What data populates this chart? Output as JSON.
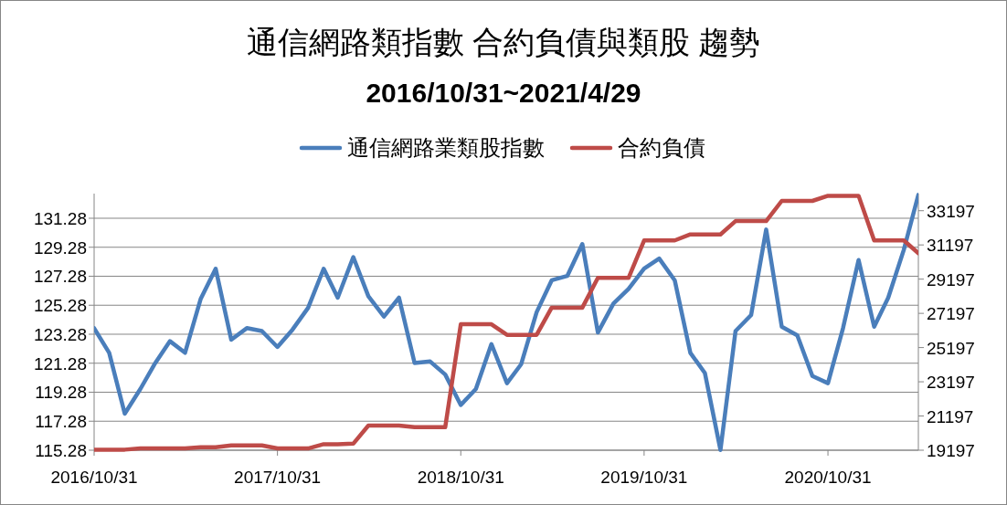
{
  "chart_data": {
    "type": "line",
    "title": "通信網路類指數 合約負債與類股 趨勢",
    "subtitle": "2016/10/31~2021/4/29",
    "x": [
      "2016-10-31",
      "2016-11-30",
      "2016-12-31",
      "2017-01-31",
      "2017-02-28",
      "2017-03-31",
      "2017-04-30",
      "2017-05-31",
      "2017-06-30",
      "2017-07-31",
      "2017-08-31",
      "2017-09-30",
      "2017-10-31",
      "2017-11-30",
      "2017-12-31",
      "2018-01-31",
      "2018-02-28",
      "2018-03-31",
      "2018-04-30",
      "2018-05-31",
      "2018-06-30",
      "2018-07-31",
      "2018-08-31",
      "2018-09-30",
      "2018-10-31",
      "2018-11-30",
      "2018-12-31",
      "2019-01-31",
      "2019-02-28",
      "2019-03-31",
      "2019-04-30",
      "2019-05-31",
      "2019-06-30",
      "2019-07-31",
      "2019-08-31",
      "2019-09-30",
      "2019-10-31",
      "2019-11-30",
      "2019-12-31",
      "2020-01-31",
      "2020-02-29",
      "2020-03-31",
      "2020-04-30",
      "2020-05-31",
      "2020-06-30",
      "2020-07-31",
      "2020-08-31",
      "2020-09-30",
      "2020-10-31",
      "2020-11-30",
      "2020-12-31",
      "2021-01-31",
      "2021-02-28",
      "2021-03-31",
      "2021-04-29"
    ],
    "series": [
      {
        "name": "通信網路業類股指數",
        "color": "#4a7ebb",
        "values": [
          123.7,
          122.0,
          117.8,
          119.5,
          121.2,
          122.8,
          122.0,
          125.7,
          127.8,
          122.9,
          123.7,
          123.5,
          122.4,
          123.6,
          125.1,
          127.8,
          125.8,
          128.6,
          125.9,
          124.5,
          125.8,
          121.3,
          121.4,
          120.5,
          118.4,
          119.5,
          122.6,
          119.9,
          121.2,
          124.8,
          127.0,
          127.3,
          129.5,
          123.4,
          125.4,
          126.4,
          127.8,
          128.5,
          127.0,
          122.0,
          120.6,
          115.3,
          123.5,
          124.6,
          130.5,
          123.8,
          123.2,
          120.4,
          119.9,
          123.7,
          128.4,
          123.8,
          125.8,
          129.1,
          132.9
        ]
      },
      {
        "name": "合約負債",
        "color": "#be4b48",
        "axis": "y2",
        "values": [
          19230,
          19230,
          19230,
          19300,
          19300,
          19300,
          19300,
          19370,
          19370,
          19480,
          19480,
          19480,
          19300,
          19300,
          19300,
          19550,
          19550,
          19580,
          20640,
          20640,
          20640,
          20540,
          20540,
          20540,
          26560,
          26560,
          26560,
          25940,
          25940,
          25940,
          27530,
          27530,
          27530,
          29270,
          29270,
          29270,
          31460,
          31460,
          31460,
          31810,
          31810,
          31810,
          32590,
          32590,
          32590,
          33770,
          33770,
          33770,
          34070,
          34070,
          34070,
          31460,
          31460,
          31460,
          30710
        ]
      }
    ],
    "xlim": [
      "2016-10-31",
      "2021-04-29"
    ],
    "xticks": [
      {
        "value": "2016-10-31",
        "label": "2016/10/31"
      },
      {
        "value": "2017-10-31",
        "label": "2017/10/31"
      },
      {
        "value": "2018-10-31",
        "label": "2018/10/31"
      },
      {
        "value": "2019-10-31",
        "label": "2019/10/31"
      },
      {
        "value": "2020-10-31",
        "label": "2020/10/31"
      }
    ],
    "ylim": [
      115.28,
      132.98
    ],
    "yticks": [
      115.28,
      117.28,
      119.28,
      121.28,
      123.28,
      125.28,
      127.28,
      129.28,
      131.28
    ],
    "y2lim": [
      19197,
      34197
    ],
    "y2ticks": [
      19197,
      21197,
      23197,
      25197,
      27197,
      29197,
      31197,
      33197
    ],
    "grid": "y",
    "legend": "top"
  }
}
